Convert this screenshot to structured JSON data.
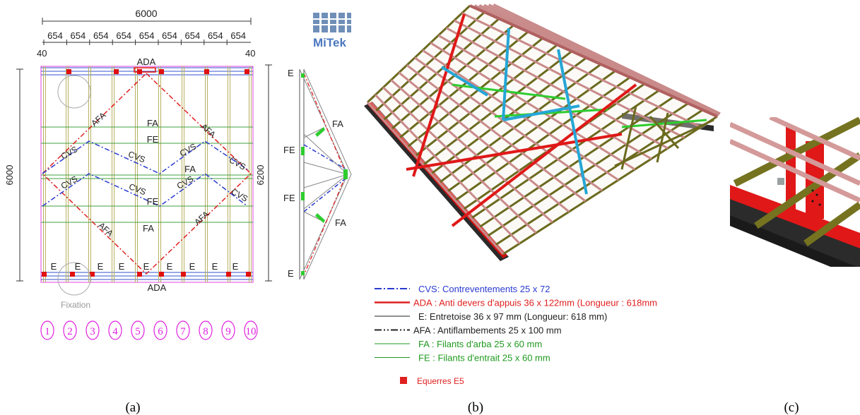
{
  "panel_a": {
    "dim_total_width": "6000",
    "spacings": [
      "654",
      "654",
      "654",
      "654",
      "654",
      "654",
      "654",
      "654",
      "654"
    ],
    "end_left": "40",
    "end_right": "40",
    "dim_height_left": "6000",
    "dim_height_right": "6200",
    "labels": {
      "ada_top": "ADA",
      "ada_bottom": "ADA",
      "afa": "AFA",
      "cvs": "CVS",
      "fa": "FA",
      "fe": "FE",
      "e": "E",
      "fixation": "Fixation"
    },
    "truss_numbers": [
      "1",
      "2",
      "3",
      "4",
      "5",
      "6",
      "7",
      "8",
      "9",
      "10"
    ],
    "caption": "(a)"
  },
  "side_view": {
    "e_top": "E",
    "e_bottom": "E",
    "fe": "FE",
    "fa": "FA"
  },
  "logo": {
    "text": "MiTek"
  },
  "legend": {
    "items": [
      {
        "text": "CVS: Contreventements 25 x 72",
        "color": "#2a3bd0"
      },
      {
        "text": "ADA : Anti devers d'appuis 36 x 122mm (Longueur : 618mm",
        "color": "#e02020"
      },
      {
        "text": "E: Entretoise 36 x 97 mm (Longueur: 618 mm)",
        "color": "#222222"
      },
      {
        "text": "AFA : Antiflambements 25 x 100 mm",
        "color": "#222222"
      },
      {
        "text": "FA : Filants d'arba 25 x 60 mm",
        "color": "#1f9a1f"
      },
      {
        "text": "FE : Filants d'entrait 25 x 60 mm",
        "color": "#1f9a1f"
      },
      {
        "text": "Equerres E5",
        "color": "#e02020"
      }
    ]
  },
  "captions": {
    "a": "(a)",
    "b": "(b)",
    "c": "(c)"
  }
}
